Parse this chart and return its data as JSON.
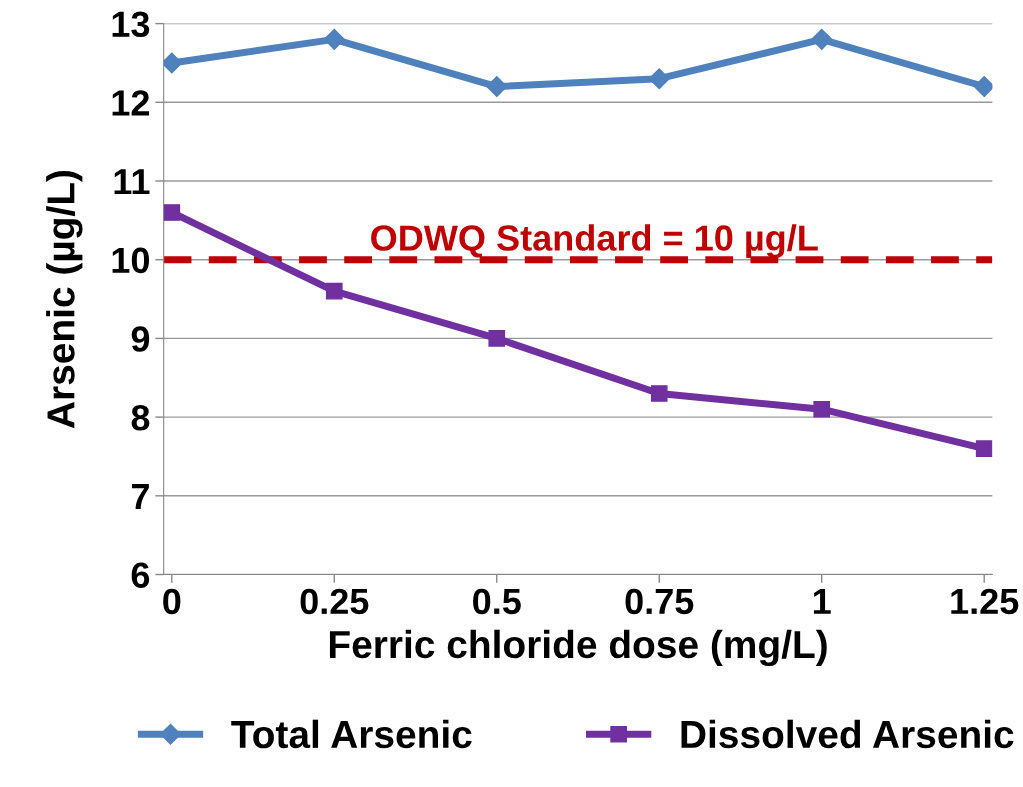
{
  "chart_data": {
    "type": "line",
    "xlabel": "Ferric chloride dose (mg/L)",
    "ylabel": "Arsenic (µg/L)",
    "categories": [
      "0",
      "0.25",
      "0.5",
      "0.75",
      "1",
      "1.25"
    ],
    "series": [
      {
        "name": "Total Arsenic",
        "color": "#4f81bd",
        "marker": "diamond",
        "values": [
          12.5,
          12.8,
          12.2,
          12.3,
          12.8,
          12.2
        ]
      },
      {
        "name": "Dissolved Arsenic",
        "color": "#7030a0",
        "marker": "square",
        "values": [
          10.6,
          9.6,
          9.0,
          8.3,
          8.1,
          7.6
        ]
      }
    ],
    "ylim": [
      6,
      13
    ],
    "yticks": [
      6,
      7,
      8,
      9,
      10,
      11,
      12,
      13
    ],
    "grid": "y",
    "legend": "bottom",
    "line_style": "solid",
    "ref_lines": [
      {
        "axis": "y",
        "value": 10,
        "label": "ODWQ Standard = 10 µg/L",
        "color": "#c00000",
        "line_style": "dashed"
      }
    ]
  }
}
